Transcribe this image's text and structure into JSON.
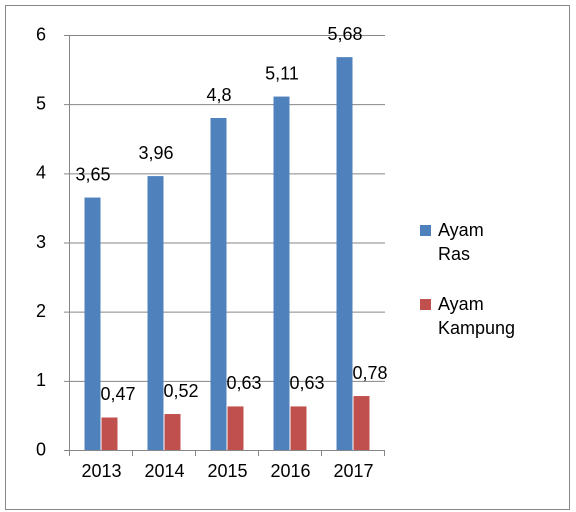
{
  "chart_data": {
    "type": "bar",
    "categories": [
      "2013",
      "2014",
      "2015",
      "2016",
      "2017"
    ],
    "series": [
      {
        "name": "Ayam Ras",
        "color": "#4f81bd",
        "values": [
          3.65,
          3.96,
          4.8,
          5.11,
          5.68
        ],
        "value_labels": [
          "3,65",
          "3,96",
          "4,8",
          "5,11",
          "5,68"
        ]
      },
      {
        "name": "Ayam Kampung",
        "color": "#c0504d",
        "values": [
          0.47,
          0.52,
          0.63,
          0.63,
          0.78
        ],
        "value_labels": [
          "0,47",
          "0,52",
          "0,63",
          "0,63",
          "0,78"
        ]
      }
    ],
    "ylim": [
      0,
      6
    ],
    "yticks": [
      0,
      1,
      2,
      3,
      4,
      5,
      6
    ],
    "grid": true,
    "legend": "right"
  }
}
